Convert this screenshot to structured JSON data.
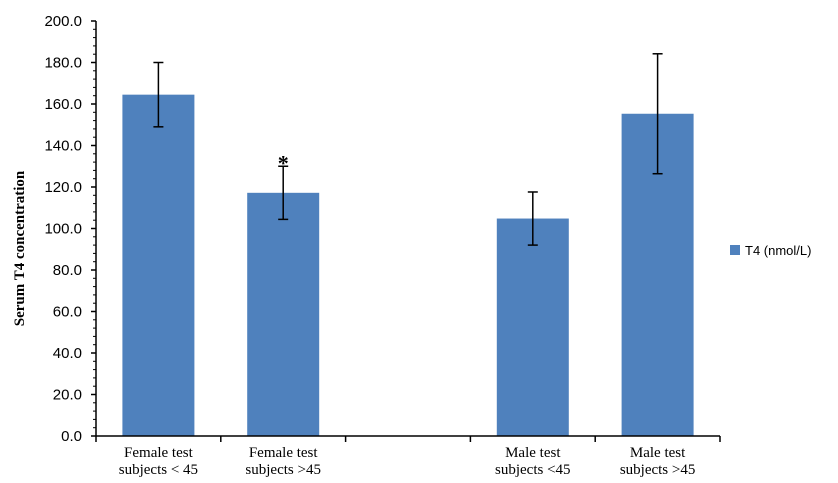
{
  "chart_data": {
    "type": "bar",
    "categories": [
      [
        "Female test",
        "subjects < 45"
      ],
      [
        "Female test",
        "subjects >45"
      ],
      [
        "",
        ""
      ],
      [
        "Male test",
        "subjects <45"
      ],
      [
        "Male test",
        "subjects >45"
      ]
    ],
    "series": [
      {
        "name": "T4 (nmol/L)",
        "values": [
          164.5,
          117.2,
          null,
          104.8,
          155.3
        ],
        "error": [
          15.5,
          12.8,
          null,
          12.8,
          28.9
        ]
      }
    ],
    "annotations": [
      {
        "category_index": 1,
        "text": "*"
      }
    ],
    "ylabel": "Serum T4  concentration",
    "ylim": [
      0,
      200
    ],
    "yticks": [
      "0.0",
      "20.0",
      "40.0",
      "60.0",
      "80.0",
      "100.0",
      "120.0",
      "140.0",
      "160.0",
      "180.0",
      "200.0"
    ],
    "grid": false,
    "legend_position": "right",
    "colors": {
      "bar": "#4f81bd",
      "error_bar": "#000000",
      "axis": "#000000"
    }
  }
}
